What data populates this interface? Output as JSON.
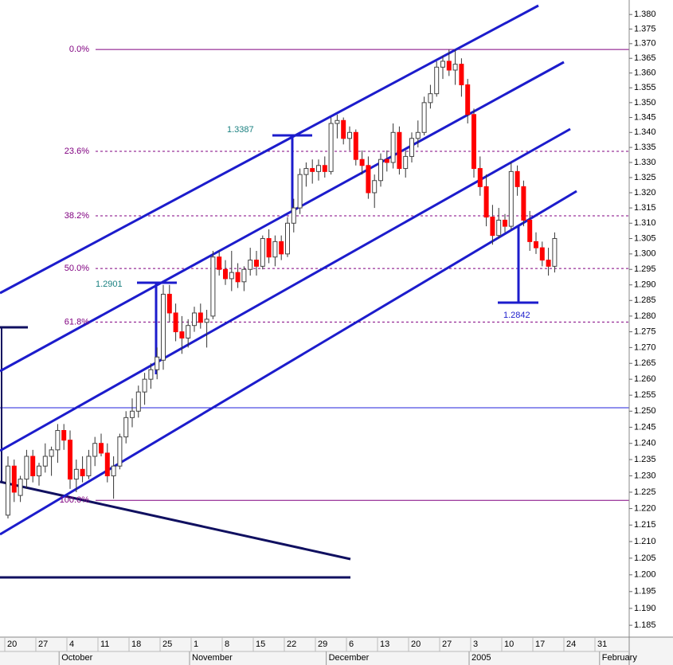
{
  "chart_data": {
    "type": "candlestick",
    "ylim": [
      1.1815,
      1.385
    ],
    "log_scale": true,
    "yticks": [
      1.185,
      {
        "value": 1.19,
        "label": "1.190"
      },
      1.195,
      {
        "value": 1.2,
        "label": "1.200"
      },
      1.205,
      {
        "value": 1.21,
        "label": "1.210"
      },
      1.215,
      {
        "value": 1.22,
        "label": "1.220"
      },
      1.225,
      {
        "value": 1.23,
        "label": "1.230"
      },
      1.235,
      {
        "value": 1.24,
        "label": "1.240"
      },
      1.245,
      {
        "value": 1.25,
        "label": "1.250"
      },
      1.255,
      {
        "value": 1.26,
        "label": "1.260"
      },
      1.265,
      {
        "value": 1.27,
        "label": "1.270"
      },
      1.275,
      {
        "value": 1.28,
        "label": "1.280"
      },
      1.285,
      {
        "value": 1.29,
        "label": "1.290"
      },
      1.295,
      {
        "value": 1.3,
        "label": "1.300"
      },
      1.305,
      {
        "value": 1.31,
        "label": "1.310"
      },
      1.315,
      {
        "value": 1.32,
        "label": "1.320"
      },
      1.325,
      {
        "value": 1.33,
        "label": "1.330"
      },
      1.335,
      {
        "value": 1.34,
        "label": "1.340"
      },
      1.345,
      {
        "value": 1.35,
        "label": "1.350"
      },
      1.355,
      {
        "value": 1.36,
        "label": "1.360"
      },
      1.365,
      {
        "value": 1.37,
        "label": "1.370"
      },
      1.375,
      {
        "value": 1.38,
        "label": "1.380"
      }
    ],
    "xtick_labels": [
      "20",
      "27",
      "4",
      "11",
      "18",
      "25",
      "1",
      "8",
      "15",
      "22",
      "29",
      "6",
      "13",
      "20",
      "27",
      "3",
      "10",
      "17",
      "24",
      "31"
    ],
    "month_labels": [
      "October",
      "November",
      "December",
      "2005",
      "February"
    ],
    "up_color": "#ffffff",
    "down_color": "#ff0000",
    "open": [
      1.218,
      1.233,
      1.224,
      1.229,
      1.236,
      1.23,
      1.233,
      1.236,
      1.238,
      1.244,
      1.241,
      1.229,
      1.232,
      1.23,
      1.236,
      1.24,
      1.237,
      1.23,
      1.233,
      1.242,
      1.248,
      1.25,
      1.256,
      1.26,
      1.263,
      1.266,
      1.287,
      1.281,
      1.275,
      1.273,
      1.277,
      1.281,
      1.278,
      1.28,
      1.299,
      1.295,
      1.292,
      1.294,
      1.291,
      1.295,
      1.298,
      1.296,
      1.305,
      1.299,
      1.304,
      1.3,
      1.31,
      1.315,
      1.326,
      1.328,
      1.327,
      1.329,
      1.327,
      1.343,
      1.344,
      1.338,
      1.34,
      1.331,
      1.329,
      1.32,
      1.324,
      1.331,
      1.33,
      1.34,
      1.328,
      1.332,
      1.338,
      1.34,
      1.35,
      1.353,
      1.362,
      1.364,
      1.361,
      1.363,
      1.356,
      1.346,
      1.328,
      1.322,
      1.312,
      1.306,
      1.311,
      1.309,
      1.327,
      1.322,
      1.311,
      1.304,
      1.302,
      1.298,
      1.296
    ],
    "high": [
      1.236,
      1.235,
      1.23,
      1.238,
      1.238,
      1.234,
      1.24,
      1.239,
      1.246,
      1.246,
      1.244,
      1.235,
      1.236,
      1.238,
      1.242,
      1.243,
      1.24,
      1.236,
      1.243,
      1.25,
      1.254,
      1.258,
      1.262,
      1.265,
      1.27,
      1.29,
      1.29,
      1.284,
      1.28,
      1.279,
      1.283,
      1.284,
      1.282,
      1.301,
      1.301,
      1.298,
      1.301,
      1.297,
      1.296,
      1.302,
      1.301,
      1.306,
      1.308,
      1.306,
      1.306,
      1.312,
      1.318,
      1.328,
      1.33,
      1.331,
      1.331,
      1.332,
      1.345,
      1.346,
      1.345,
      1.342,
      1.341,
      1.334,
      1.332,
      1.326,
      1.333,
      1.334,
      1.343,
      1.342,
      1.334,
      1.34,
      1.344,
      1.352,
      1.356,
      1.364,
      1.366,
      1.368,
      1.368,
      1.365,
      1.358,
      1.348,
      1.332,
      1.326,
      1.316,
      1.315,
      1.313,
      1.33,
      1.329,
      1.324,
      1.314,
      1.307,
      1.304,
      1.302,
      1.307
    ],
    "low": [
      1.217,
      1.222,
      1.222,
      1.226,
      1.228,
      1.227,
      1.231,
      1.23,
      1.234,
      1.238,
      1.226,
      1.225,
      1.228,
      1.229,
      1.233,
      1.236,
      1.228,
      1.223,
      1.232,
      1.24,
      1.245,
      1.248,
      1.252,
      1.257,
      1.26,
      1.263,
      1.278,
      1.272,
      1.268,
      1.27,
      1.275,
      1.276,
      1.27,
      1.279,
      1.293,
      1.29,
      1.288,
      1.289,
      1.288,
      1.293,
      1.293,
      1.295,
      1.297,
      1.296,
      1.298,
      1.299,
      1.307,
      1.313,
      1.322,
      1.323,
      1.324,
      1.325,
      1.326,
      1.338,
      1.336,
      1.334,
      1.329,
      1.326,
      1.318,
      1.315,
      1.322,
      1.327,
      1.328,
      1.326,
      1.325,
      1.33,
      1.335,
      1.339,
      1.348,
      1.352,
      1.358,
      1.359,
      1.356,
      1.352,
      1.343,
      1.325,
      1.319,
      1.309,
      1.303,
      1.305,
      1.307,
      1.308,
      1.319,
      1.309,
      1.301,
      1.3,
      1.296,
      1.293,
      1.294
    ],
    "close": [
      1.233,
      1.225,
      1.229,
      1.236,
      1.23,
      1.233,
      1.236,
      1.238,
      1.244,
      1.241,
      1.229,
      1.232,
      1.23,
      1.236,
      1.24,
      1.237,
      1.23,
      1.233,
      1.242,
      1.248,
      1.25,
      1.256,
      1.26,
      1.263,
      1.267,
      1.287,
      1.281,
      1.275,
      1.273,
      1.277,
      1.281,
      1.278,
      1.279,
      1.299,
      1.295,
      1.292,
      1.294,
      1.291,
      1.295,
      1.298,
      1.296,
      1.305,
      1.299,
      1.304,
      1.3,
      1.31,
      1.315,
      1.326,
      1.328,
      1.327,
      1.329,
      1.327,
      1.343,
      1.344,
      1.338,
      1.34,
      1.331,
      1.329,
      1.32,
      1.324,
      1.331,
      1.33,
      1.34,
      1.328,
      1.332,
      1.338,
      1.34,
      1.35,
      1.353,
      1.362,
      1.364,
      1.361,
      1.363,
      1.356,
      1.346,
      1.328,
      1.322,
      1.312,
      1.306,
      1.311,
      1.309,
      1.327,
      1.322,
      1.311,
      1.304,
      1.302,
      1.298,
      1.296,
      1.305
    ],
    "fib_levels": [
      {
        "label": "0.0%",
        "value": 1.368
      },
      {
        "label": "23.6%",
        "value": 1.3337
      },
      {
        "label": "38.2%",
        "value": 1.3124
      },
      {
        "label": "50.0%",
        "value": 1.2953
      },
      {
        "label": "61.8%",
        "value": 1.2781
      },
      {
        "label": "100.0%",
        "value": 1.2225
      }
    ],
    "fib_color": "#800080",
    "annotations": [
      "1.2901",
      "1.3387",
      "1.2842"
    ]
  }
}
